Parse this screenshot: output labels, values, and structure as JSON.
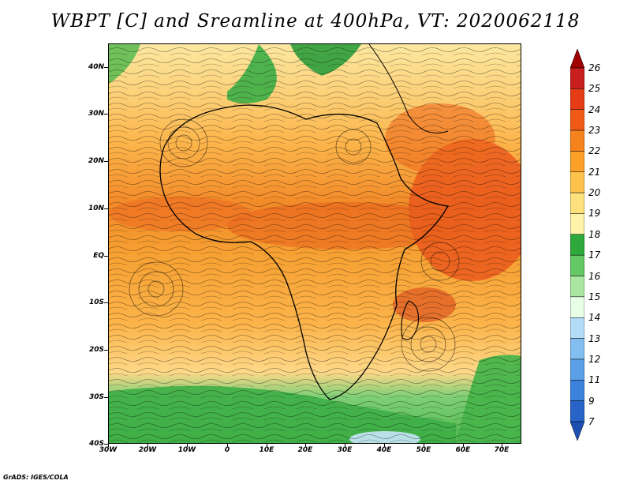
{
  "title": "WBPT [C] and Sreamline at 400hPa, VT: 2020062118",
  "footer": "GrADS: IGES/COLA",
  "map": {
    "lat_labels": [
      "40N",
      "30N",
      "20N",
      "10N",
      "EQ",
      "10S",
      "20S",
      "30S",
      "40S"
    ],
    "lon_labels": [
      "30W",
      "20W",
      "10W",
      "0",
      "10E",
      "20E",
      "30E",
      "40E",
      "50E",
      "60E",
      "70E"
    ]
  },
  "colorbar": {
    "labels": [
      "26",
      "25",
      "24",
      "23",
      "22",
      "21",
      "20",
      "19",
      "18",
      "17",
      "16",
      "15",
      "14",
      "13",
      "12",
      "11",
      "9",
      "7"
    ],
    "colors": [
      "#a00000",
      "#c81e1e",
      "#e63c16",
      "#f05a14",
      "#f6821e",
      "#fca028",
      "#fcc24c",
      "#fde17c",
      "#fdf2a8",
      "#2eaa3c",
      "#64c864",
      "#aae6a0",
      "#e6ffe6",
      "#b4dcf8",
      "#82bef0",
      "#5aa0e6",
      "#3c82dc",
      "#2864c8",
      "#1e50b4"
    ]
  }
}
